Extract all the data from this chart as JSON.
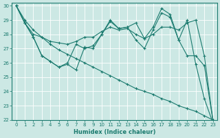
{
  "xlabel": "Humidex (Indice chaleur)",
  "bg_color": "#cce8e4",
  "line_color": "#1a7a6e",
  "grid_color": "#ffffff",
  "xlim": [
    -0.5,
    23.5
  ],
  "ylim": [
    22,
    30.2
  ],
  "yticks": [
    22,
    23,
    24,
    25,
    26,
    27,
    28,
    29,
    30
  ],
  "xticks": [
    0,
    1,
    2,
    3,
    4,
    5,
    6,
    7,
    8,
    9,
    10,
    11,
    12,
    13,
    14,
    15,
    16,
    17,
    18,
    19,
    20,
    21,
    22,
    23
  ],
  "series": [
    {
      "x": [
        0,
        1,
        2,
        3,
        4,
        5,
        6,
        7,
        8,
        9,
        10,
        11,
        12,
        13,
        14,
        15,
        16,
        17,
        18,
        19,
        20,
        21,
        22,
        23
      ],
      "y": [
        30.0,
        28.8,
        27.8,
        26.5,
        26.1,
        25.7,
        26.0,
        27.3,
        27.0,
        27.2,
        28.0,
        29.0,
        28.4,
        28.5,
        28.8,
        27.7,
        28.5,
        29.8,
        29.4,
        27.6,
        29.0,
        25.9,
        23.5,
        21.8
      ]
    },
    {
      "x": [
        0,
        1,
        2,
        3,
        4,
        5,
        6,
        7,
        8,
        9,
        10,
        11,
        12,
        13,
        14,
        15,
        16,
        17,
        18,
        19,
        20,
        21,
        22,
        23
      ],
      "y": [
        30.0,
        28.8,
        27.8,
        26.5,
        26.1,
        25.7,
        25.9,
        25.5,
        27.1,
        27.0,
        28.0,
        28.9,
        28.4,
        28.5,
        27.6,
        27.0,
        28.3,
        29.5,
        29.2,
        27.6,
        26.5,
        26.5,
        25.8,
        22.0
      ]
    },
    {
      "x": [
        0,
        1,
        2,
        3,
        4,
        5,
        6,
        7,
        8,
        9,
        10,
        11,
        12,
        13,
        14,
        15,
        16,
        17,
        18,
        19,
        20,
        21,
        22,
        23
      ],
      "y": [
        30.0,
        28.8,
        28.0,
        27.8,
        27.5,
        27.4,
        27.3,
        27.5,
        27.8,
        27.8,
        28.2,
        28.5,
        28.3,
        28.4,
        28.0,
        27.7,
        28.0,
        28.5,
        28.5,
        28.3,
        28.8,
        29.0,
        26.5,
        22.0
      ]
    },
    {
      "x": [
        0,
        1,
        2,
        3,
        4,
        5,
        6,
        7,
        8,
        9,
        10,
        11,
        12,
        13,
        14,
        15,
        16,
        17,
        18,
        19,
        20,
        21,
        22,
        23
      ],
      "y": [
        30.0,
        29.0,
        28.3,
        27.8,
        27.3,
        26.9,
        26.6,
        26.3,
        26.0,
        25.7,
        25.4,
        25.1,
        24.8,
        24.5,
        24.2,
        24.0,
        23.8,
        23.5,
        23.3,
        23.0,
        22.8,
        22.6,
        22.3,
        22.0
      ]
    }
  ]
}
